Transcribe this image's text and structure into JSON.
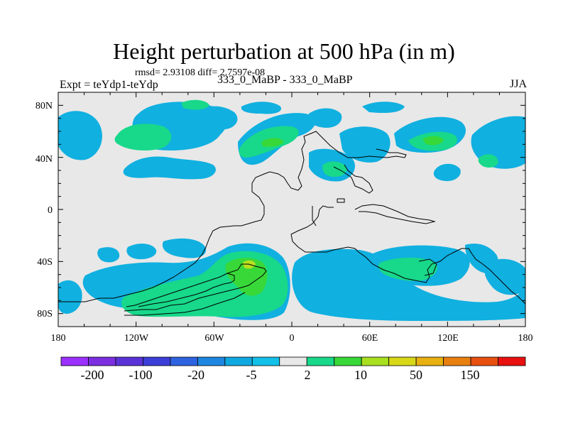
{
  "title": "Height perturbation at 500 hPa (in m)",
  "stats": "rmsd= 2.93108 diff= 2.7597e-08",
  "experiment": "Expt = teYdp1-teYdp",
  "cases": "333_0_MaBP - 333_0_MaBP",
  "season": "JJA",
  "axes": {
    "x_ticks": [
      "180",
      "120W",
      "60W",
      "0",
      "60E",
      "120E",
      "180"
    ],
    "y_ticks": [
      "80N",
      "40N",
      "0",
      "40S",
      "80S"
    ]
  },
  "colorbar": {
    "colors": [
      "#9b30ff",
      "#7b2fe0",
      "#5a33d8",
      "#3b3fd8",
      "#2e63e0",
      "#1d86e0",
      "#10a8e0",
      "#12c0e8",
      "#e8e8e8",
      "#18d88a",
      "#38d838",
      "#a8e020",
      "#d8d818",
      "#e8b010",
      "#e88010",
      "#e85010",
      "#e81010"
    ],
    "labels": [
      "-200",
      "-100",
      "-20",
      "-5",
      "2",
      "10",
      "50",
      "150"
    ]
  },
  "field_colors": {
    "background": "#e8e8e8",
    "cyan": "#10b0e0",
    "green": "#18d88a",
    "bright_green": "#38d838",
    "yellow_green": "#b8e020"
  }
}
